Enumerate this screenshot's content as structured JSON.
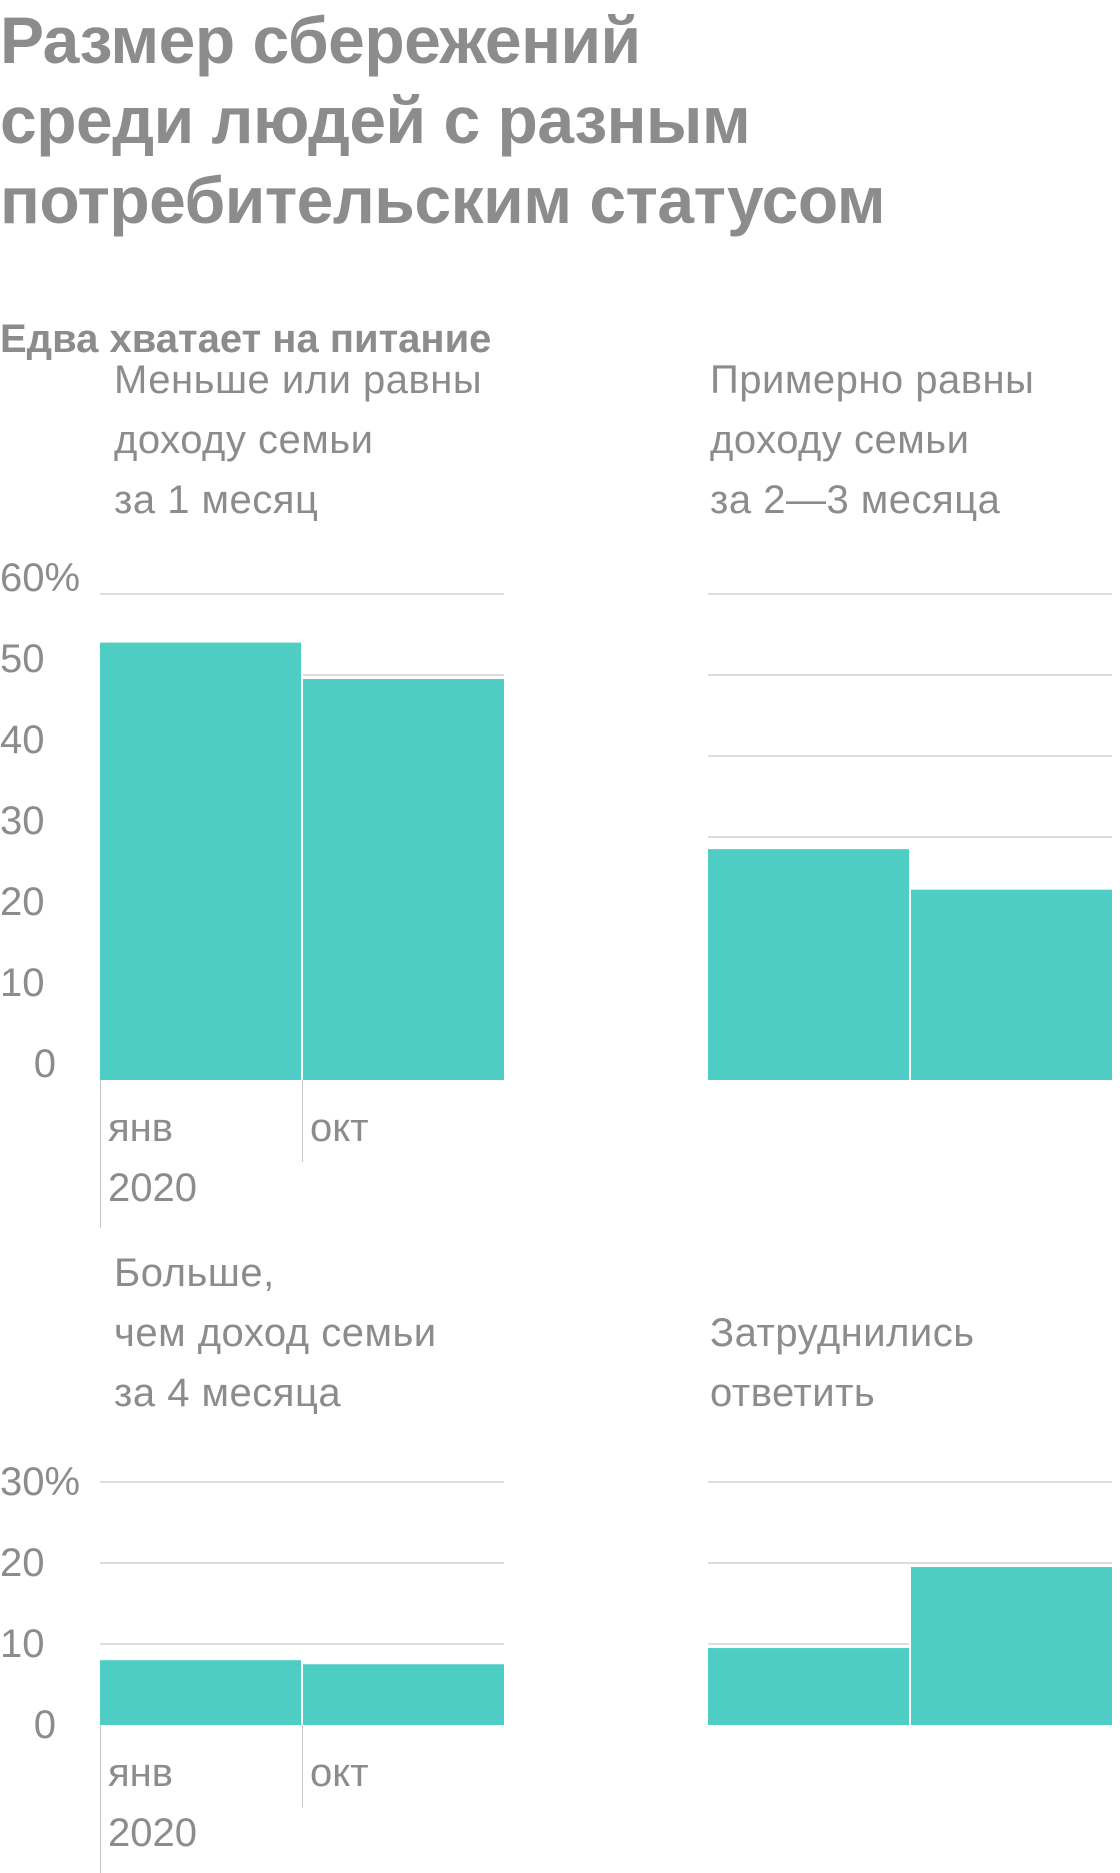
{
  "chart_data": {
    "type": "bar",
    "title": "Размер сбережений среди людей с разным потребительским статусом",
    "title_lines": [
      "Размер сбережений",
      "среди людей с разным",
      "потребительским статусом"
    ],
    "subtitle": "Едва хватает на питание",
    "categories": [
      "янв 2020",
      "окт"
    ],
    "colors": {
      "bar": "#4ecdc4",
      "grid": "#dddddd",
      "text": "#8c8c8c"
    },
    "grid": true,
    "rows": [
      {
        "ylim": [
          0,
          60
        ],
        "yticks": [
          "60%",
          "50",
          "40",
          "30",
          "20",
          "10",
          "0"
        ],
        "xtick_labels": {
          "jan": "янв",
          "year": "2020",
          "oct": "окт"
        },
        "panels": [
          {
            "title_lines": [
              "Меньше или равны",
              "доходу семьи",
              "за 1 месяц"
            ],
            "values": [
              54,
              49.5
            ]
          },
          {
            "title_lines": [
              "Примерно равны",
              "доходу семьи",
              "за 2—3 месяца"
            ],
            "values": [
              28.5,
              23.5
            ]
          }
        ]
      },
      {
        "ylim": [
          0,
          30
        ],
        "yticks": [
          "30%",
          "20",
          "10",
          "0"
        ],
        "xtick_labels": {
          "jan": "янв",
          "year": "2020",
          "oct": "окт"
        },
        "panels": [
          {
            "title_lines": [
              "Больше,",
              "чем доход семьи",
              "за 4 месяца"
            ],
            "values": [
              8,
              7.5
            ]
          },
          {
            "title_lines": [
              "Затруднились",
              "ответить"
            ],
            "values": [
              9.5,
              19.5
            ]
          }
        ]
      }
    ]
  }
}
